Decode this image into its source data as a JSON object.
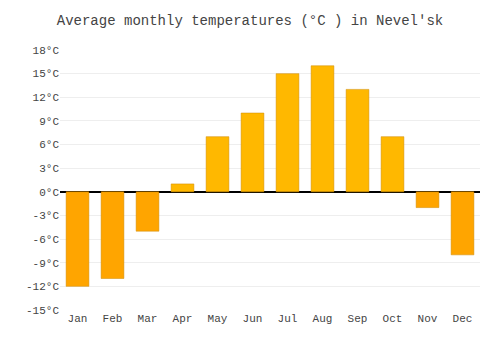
{
  "chart_data": {
    "type": "bar",
    "title": "Average monthly temperatures (°C ) in Nevelʹsk",
    "categories": [
      "Jan",
      "Feb",
      "Mar",
      "Apr",
      "May",
      "Jun",
      "Jul",
      "Aug",
      "Sep",
      "Oct",
      "Nov",
      "Dec"
    ],
    "values": [
      -12,
      -11,
      -5,
      1,
      7,
      10,
      15,
      16,
      13,
      7,
      -2,
      -8
    ],
    "colors": [
      "#FFA500",
      "#FFA500",
      "#FFA500",
      "#FFB800",
      "#FFB800",
      "#FFB800",
      "#FFB800",
      "#FFB800",
      "#FFB800",
      "#FFB800",
      "#FFA500",
      "#FFA500"
    ],
    "ylim": [
      -15,
      18
    ],
    "yticks": [
      {
        "value": -15,
        "label": "-15°C"
      },
      {
        "value": -12,
        "label": "-12°C"
      },
      {
        "value": -9,
        "label": "-9°C"
      },
      {
        "value": -6,
        "label": "-6°C"
      },
      {
        "value": -3,
        "label": "-3°C"
      },
      {
        "value": 0,
        "label": "0°C"
      },
      {
        "value": 3,
        "label": "3°C"
      },
      {
        "value": 6,
        "label": "6°C"
      },
      {
        "value": 9,
        "label": "9°C"
      },
      {
        "value": 12,
        "label": "12°C"
      },
      {
        "value": 15,
        "label": "15°C"
      },
      {
        "value": 18,
        "label": "18°C"
      }
    ],
    "grid": true
  }
}
